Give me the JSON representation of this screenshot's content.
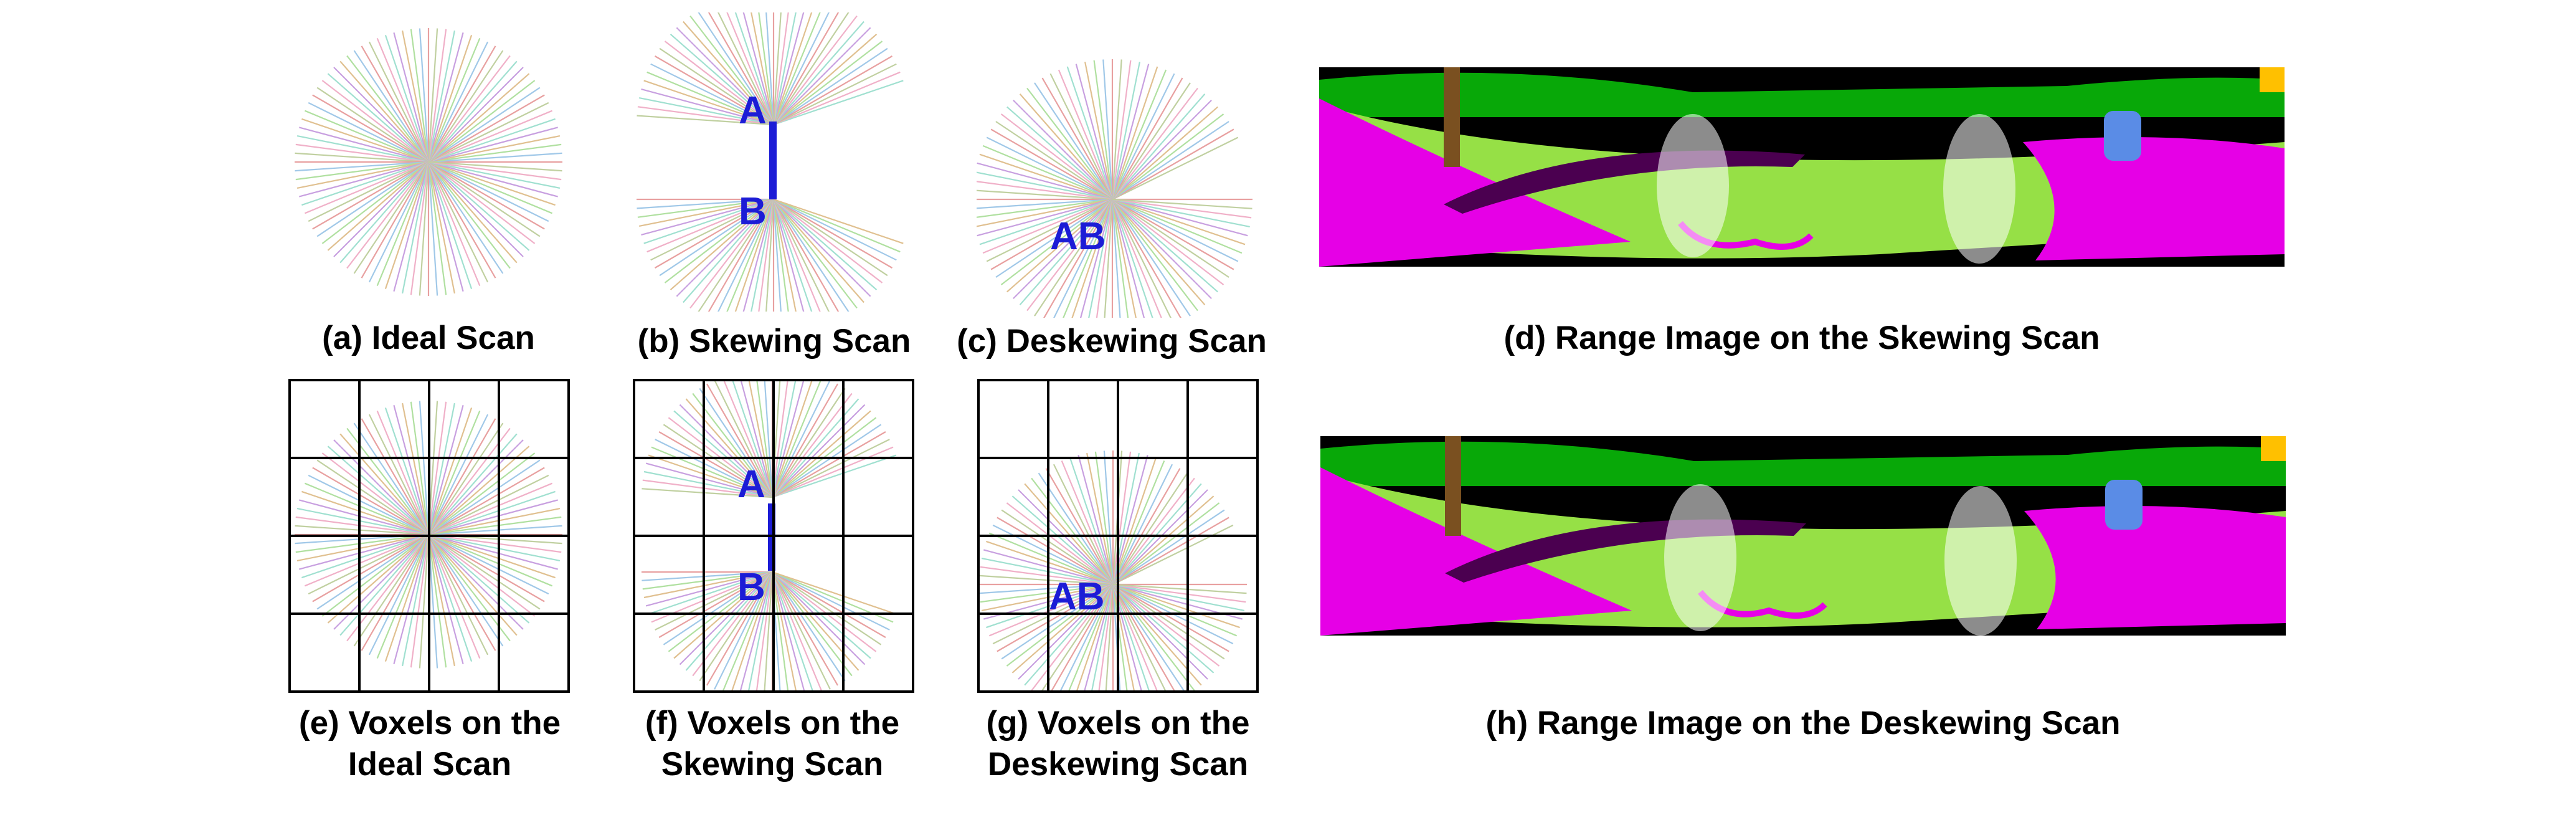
{
  "figure": {
    "captions": {
      "a": "(a) Ideal Scan",
      "b": "(b) Skewing Scan",
      "c": "(c) Deskewing Scan",
      "d": "(d) Range Image on the Skewing Scan",
      "e": [
        "(e) Voxels on the",
        "Ideal Scan"
      ],
      "f": [
        "(f) Voxels on the",
        "Skewing Scan"
      ],
      "g": [
        "(g) Voxels on the",
        "Deskewing Scan"
      ],
      "h": "(h) Range Image on the Deskewing Scan"
    },
    "point_labels": {
      "a": "A",
      "b": "B",
      "ab": "AB"
    },
    "grid": {
      "rows": 4,
      "cols": 4
    },
    "colors": {
      "label_blue": "#1c1cd6",
      "grid_line": "#000000",
      "range_ground": "#e600e6",
      "range_vegetation": "#96e046",
      "range_trees": "#08a808",
      "range_sky": "#000000",
      "range_person": "#f0a0e0",
      "range_car": "#5a8ce6",
      "range_sidewalk": "#4b0050",
      "ray_palette": [
        "#e8a0a0",
        "#a0c8e8",
        "#b0e0a0",
        "#e0c090",
        "#c8a0e0",
        "#a0e0d0",
        "#f0b0c8",
        "#c0d0a0"
      ]
    }
  }
}
